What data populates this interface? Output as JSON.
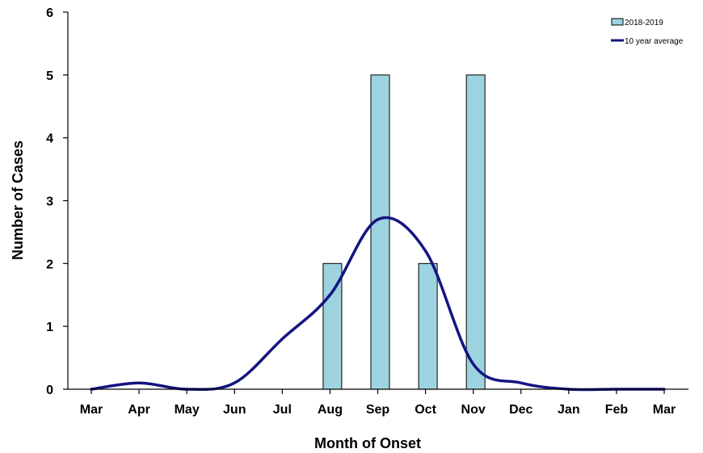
{
  "chart_data": {
    "type": "bar",
    "categories": [
      "Mar",
      "Apr",
      "May",
      "Jun",
      "Jul",
      "Aug",
      "Sep",
      "Oct",
      "Nov",
      "Dec",
      "Jan",
      "Feb",
      "Mar"
    ],
    "series": [
      {
        "name": "2018-2019",
        "type": "bar",
        "values": [
          0,
          0,
          0,
          0,
          0,
          2,
          5,
          2,
          5,
          0,
          0,
          0,
          0
        ],
        "color": "#9DD3DF"
      },
      {
        "name": "10 year average",
        "type": "line",
        "values": [
          0,
          0.1,
          0,
          0.1,
          0.8,
          1.5,
          2.7,
          2.2,
          0.4,
          0.1,
          0,
          0,
          0
        ],
        "color": "#141482"
      }
    ],
    "title": "",
    "xlabel": "Month of Onset",
    "ylabel": "Number of Cases",
    "ylim": [
      0,
      6
    ],
    "yticks": [
      0,
      1,
      2,
      3,
      4,
      5,
      6
    ],
    "grid": false,
    "legend_position": "top-right"
  }
}
